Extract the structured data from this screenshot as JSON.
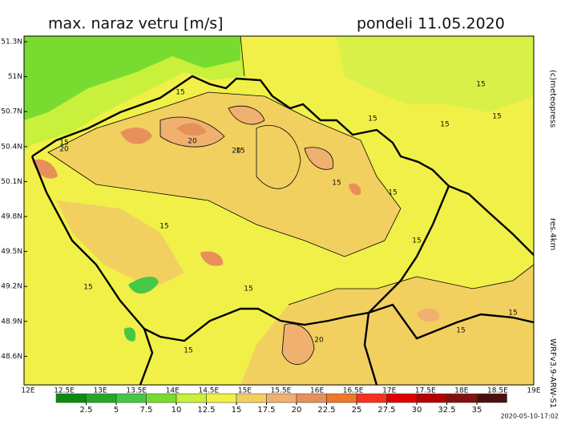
{
  "header": {
    "title": "max. naraz vetru [m/s]",
    "date": "pondeli 11.05.2020"
  },
  "lat_labels": [
    "51.3N",
    "51N",
    "50.7N",
    "50.4N",
    "50.1N",
    "49.8N",
    "49.5N",
    "49.2N",
    "48.9N",
    "48.6N"
  ],
  "lon_labels": [
    "12E",
    "12.5E",
    "13E",
    "13.5E",
    "14E",
    "14.5E",
    "15E",
    "15.5E",
    "16E",
    "16.5E",
    "17E",
    "17.5E",
    "18E",
    "18.5E",
    "19E"
  ],
  "side_labels": {
    "copyright": "(c)meteopress",
    "resolution": "res.4km",
    "model": "WRFv3.9-ARW-S1"
  },
  "timestamp": "2020-05-10-17:02",
  "colorbar": {
    "ticks": [
      2.5,
      5,
      7.5,
      10,
      12.5,
      15,
      17.5,
      20,
      22.5,
      25,
      27.5,
      30,
      32.5,
      35
    ],
    "colors": [
      "#0e8a0e",
      "#26a826",
      "#45c845",
      "#78dc30",
      "#c8f03c",
      "#f0f048",
      "#f2d060",
      "#f0b070",
      "#e8905a",
      "#f07828",
      "#f83020",
      "#e00000",
      "#b40000",
      "#841010",
      "#4a1010"
    ]
  },
  "contour_labels": [
    "15",
    "15",
    "15",
    "15",
    "15",
    "15",
    "20",
    "20",
    "20",
    "15",
    "15",
    "15",
    "15",
    "15",
    "15",
    "15",
    "15",
    "20",
    "15",
    "15"
  ]
}
